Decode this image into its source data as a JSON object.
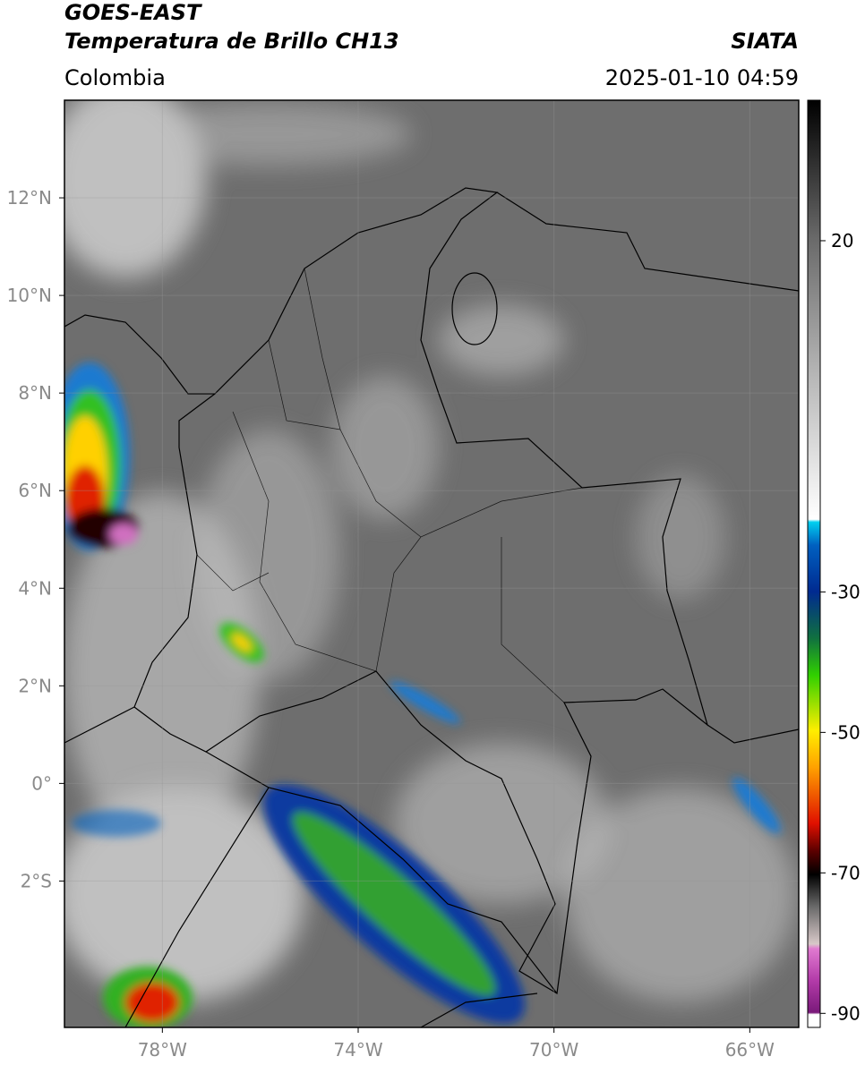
{
  "header": {
    "line1": "GOES-EAST",
    "title": "Temperatura de Brillo CH13",
    "source": "SIATA",
    "region": "Colombia",
    "datetime": "2025-01-10 04:59"
  },
  "map": {
    "type": "map",
    "xlim": [
      -80,
      -65
    ],
    "ylim": [
      -5,
      14
    ],
    "xticks": [
      {
        "value": -78,
        "label": "78°W"
      },
      {
        "value": -74,
        "label": "74°W"
      },
      {
        "value": -70,
        "label": "70°W"
      },
      {
        "value": -66,
        "label": "66°W"
      }
    ],
    "yticks": [
      {
        "value": 12,
        "label": "12°N"
      },
      {
        "value": 10,
        "label": "10°N"
      },
      {
        "value": 8,
        "label": "8°N"
      },
      {
        "value": 6,
        "label": "6°N"
      },
      {
        "value": 4,
        "label": "4°N"
      },
      {
        "value": 2,
        "label": "2°N"
      },
      {
        "value": 0,
        "label": "0°"
      },
      {
        "value": -2,
        "label": "2°S"
      }
    ],
    "grid": true,
    "colorbar": {
      "lim": [
        -92,
        40
      ],
      "ticks": [
        20,
        -30,
        -50,
        -70,
        -90
      ]
    }
  }
}
